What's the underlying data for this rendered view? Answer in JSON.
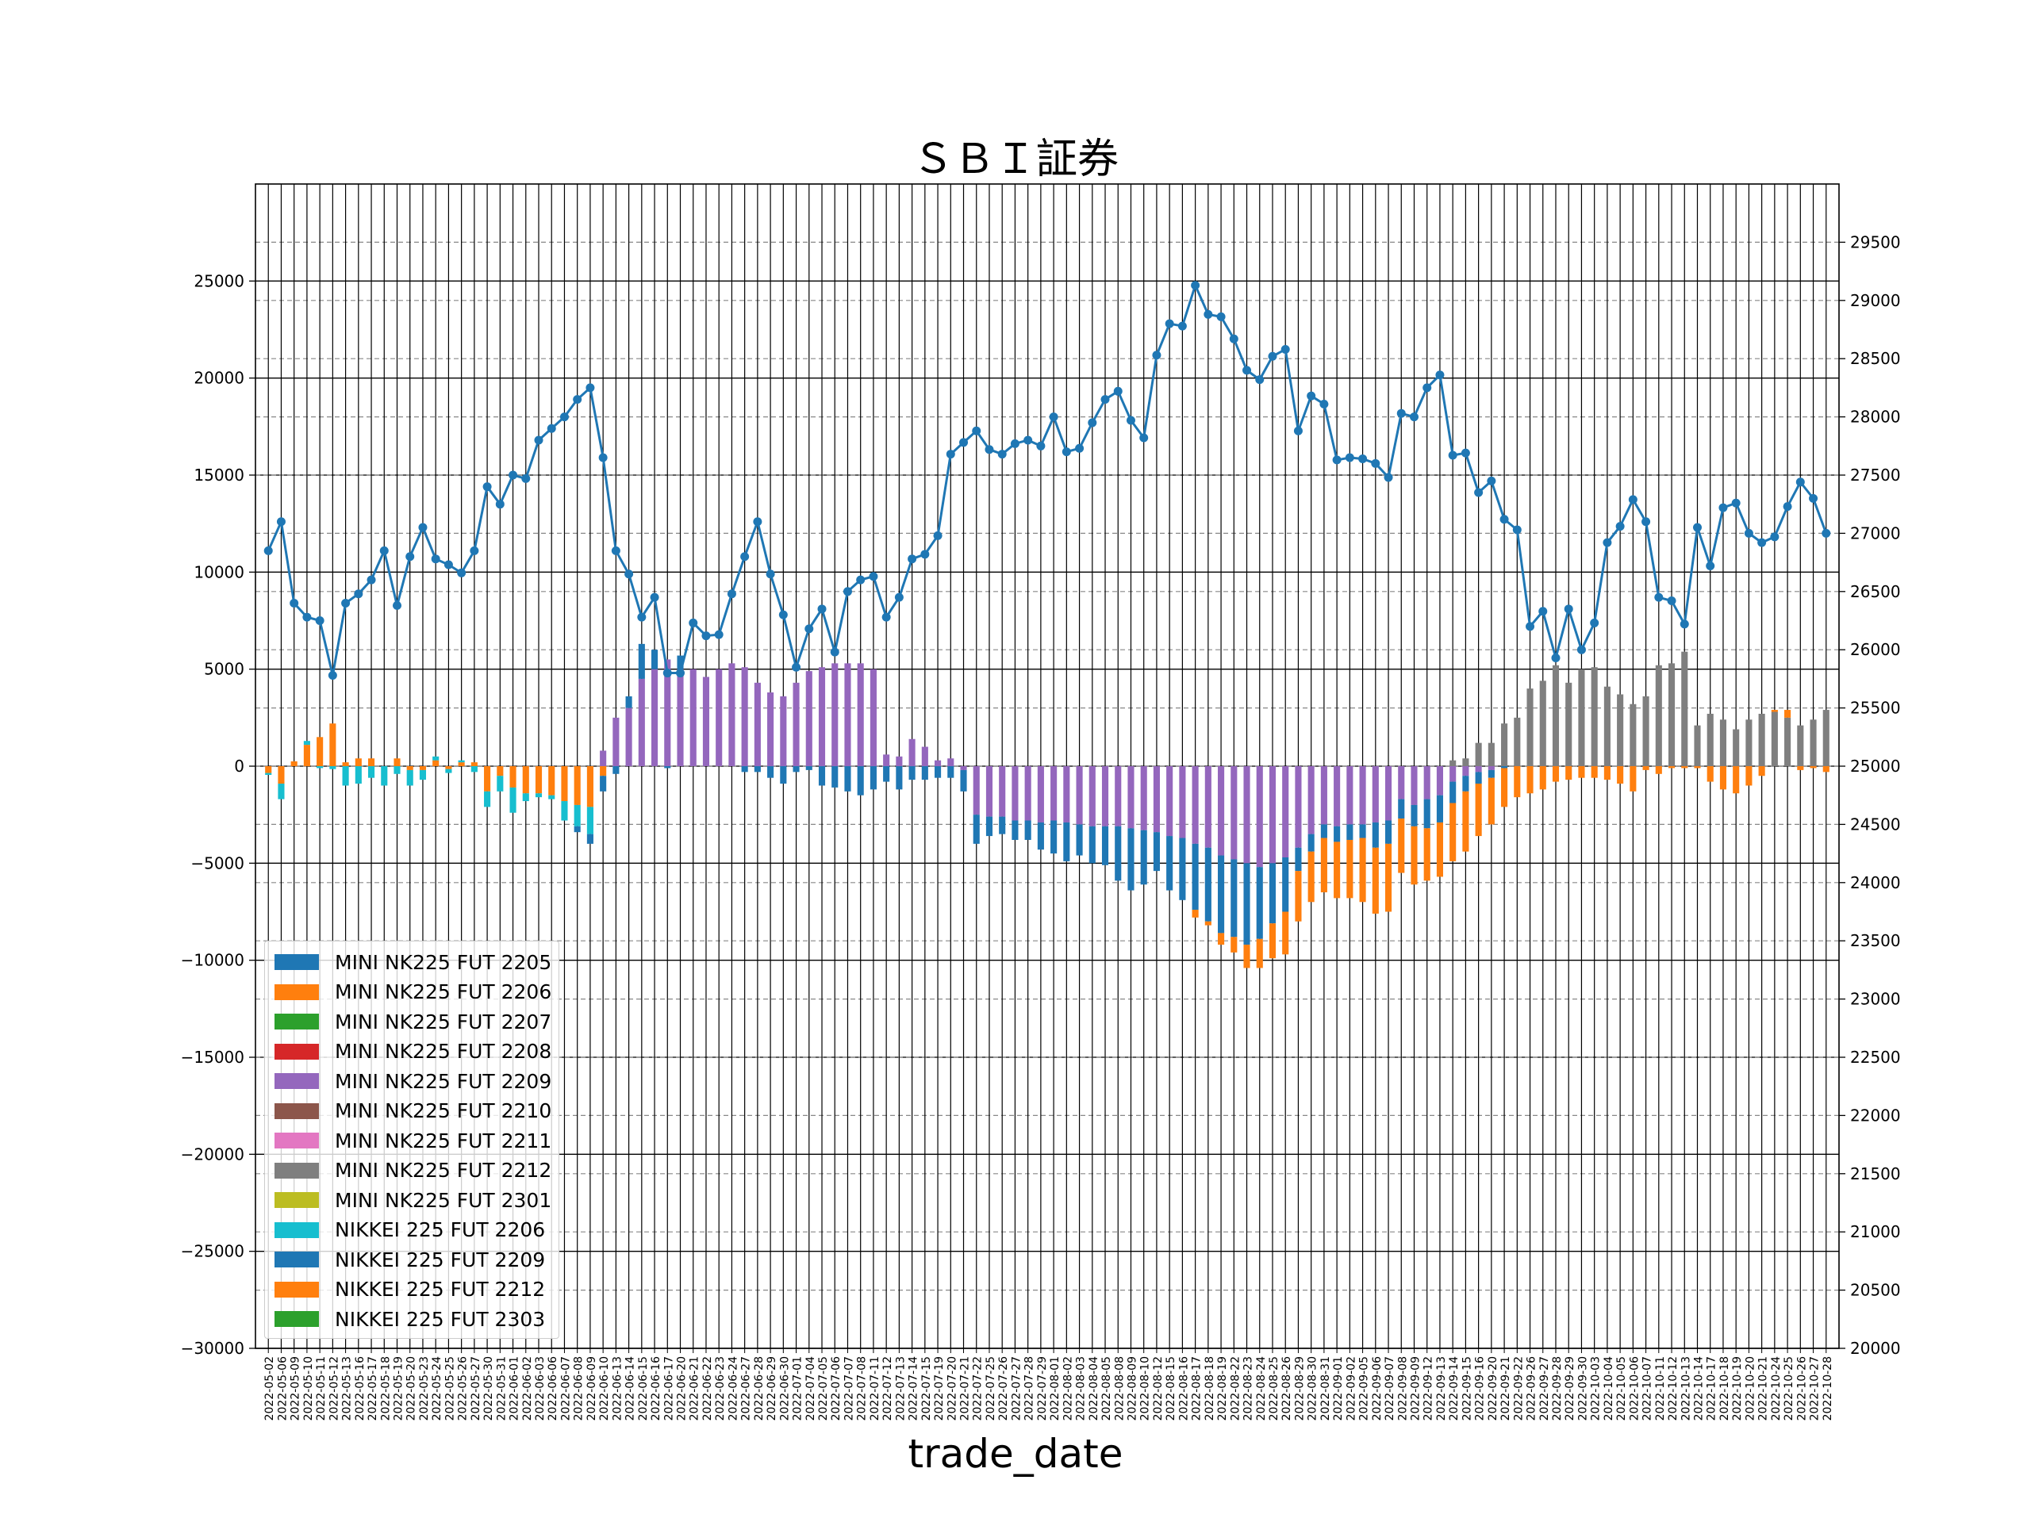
{
  "chart_data": {
    "type": "bar+line",
    "title": "ＳＢＩ証券",
    "xlabel": "trade_date",
    "ylabel": "",
    "ylim": [
      -30000,
      30000
    ],
    "y2lim": [
      20000,
      30000
    ],
    "yticks": [
      -30000,
      -25000,
      -20000,
      -15000,
      -10000,
      -5000,
      0,
      5000,
      10000,
      15000,
      20000,
      25000
    ],
    "y2ticks": [
      20000,
      20500,
      21000,
      21500,
      22000,
      22500,
      23000,
      23500,
      24000,
      24500,
      25000,
      25500,
      26000,
      26500,
      27000,
      27500,
      28000,
      28500,
      29000,
      29500
    ],
    "grid": true,
    "legend_position": "lower-left",
    "dates": [
      "2022-05-02",
      "2022-05-06",
      "2022-05-09",
      "2022-05-10",
      "2022-05-11",
      "2022-05-12",
      "2022-05-13",
      "2022-05-16",
      "2022-05-17",
      "2022-05-18",
      "2022-05-19",
      "2022-05-20",
      "2022-05-23",
      "2022-05-24",
      "2022-05-25",
      "2022-05-26",
      "2022-05-27",
      "2022-05-30",
      "2022-05-31",
      "2022-06-01",
      "2022-06-02",
      "2022-06-03",
      "2022-06-06",
      "2022-06-07",
      "2022-06-08",
      "2022-06-09",
      "2022-06-10",
      "2022-06-13",
      "2022-06-14",
      "2022-06-15",
      "2022-06-16",
      "2022-06-17",
      "2022-06-20",
      "2022-06-21",
      "2022-06-22",
      "2022-06-23",
      "2022-06-24",
      "2022-06-27",
      "2022-06-28",
      "2022-06-29",
      "2022-06-30",
      "2022-07-01",
      "2022-07-04",
      "2022-07-05",
      "2022-07-06",
      "2022-07-07",
      "2022-07-08",
      "2022-07-11",
      "2022-07-12",
      "2022-07-13",
      "2022-07-14",
      "2022-07-15",
      "2022-07-19",
      "2022-07-20",
      "2022-07-21",
      "2022-07-22",
      "2022-07-25",
      "2022-07-26",
      "2022-07-27",
      "2022-07-28",
      "2022-07-29",
      "2022-08-01",
      "2022-08-02",
      "2022-08-03",
      "2022-08-04",
      "2022-08-05",
      "2022-08-08",
      "2022-08-09",
      "2022-08-10",
      "2022-08-12",
      "2022-08-15",
      "2022-08-16",
      "2022-08-17",
      "2022-08-18",
      "2022-08-19",
      "2022-08-22",
      "2022-08-23",
      "2022-08-24",
      "2022-08-25",
      "2022-08-26",
      "2022-08-29",
      "2022-08-30",
      "2022-08-31",
      "2022-09-01",
      "2022-09-02",
      "2022-09-05",
      "2022-09-06",
      "2022-09-07",
      "2022-09-08",
      "2022-09-09",
      "2022-09-12",
      "2022-09-13",
      "2022-09-14",
      "2022-09-15",
      "2022-09-16",
      "2022-09-20",
      "2022-09-21",
      "2022-09-22",
      "2022-09-26",
      "2022-09-27",
      "2022-09-28",
      "2022-09-29",
      "2022-09-30",
      "2022-10-03",
      "2022-10-04",
      "2022-10-05",
      "2022-10-06",
      "2022-10-07",
      "2022-10-11",
      "2022-10-12",
      "2022-10-13",
      "2022-10-14",
      "2022-10-17",
      "2022-10-18",
      "2022-10-19",
      "2022-10-20",
      "2022-10-21",
      "2022-10-24",
      "2022-10-25",
      "2022-10-26",
      "2022-10-27",
      "2022-10-28"
    ],
    "line_series": {
      "name": "",
      "axis": "right",
      "color": "#1f77b4",
      "values": [
        26850,
        27100,
        26400,
        26280,
        26250,
        25780,
        26400,
        26480,
        26600,
        26850,
        26380,
        26800,
        27050,
        26780,
        26730,
        26660,
        26850,
        27400,
        27250,
        27500,
        27470,
        27800,
        27900,
        28000,
        28150,
        28250,
        27650,
        26850,
        26650,
        26280,
        26450,
        25800,
        25800,
        26230,
        26120,
        26130,
        26480,
        26800,
        27100,
        26650,
        26300,
        25850,
        26180,
        26350,
        25980,
        26500,
        26600,
        26630,
        26280,
        26450,
        26780,
        26820,
        26980,
        27680,
        27780,
        27880,
        27720,
        27680,
        27770,
        27800,
        27750,
        28000,
        27700,
        27730,
        27950,
        28150,
        28220,
        27970,
        27820,
        28530,
        28800,
        28780,
        29130,
        28880,
        28860,
        28670,
        28400,
        28320,
        28520,
        28580,
        27880,
        28180,
        28110,
        27630,
        27650,
        27640,
        27600,
        27480,
        28030,
        28000,
        28250,
        28360,
        27670,
        27690,
        27350,
        27450,
        27120,
        27030,
        26200,
        26330,
        25930,
        26350,
        26000,
        26230,
        26920,
        27060,
        27290,
        27100,
        26450,
        26420,
        26220,
        27050,
        26720,
        27220,
        27260,
        27000,
        26920,
        26970,
        27230,
        27440,
        27300,
        27000
      ]
    },
    "bar_series": [
      {
        "name": "MINI NK225 FUT 2205",
        "color": "#1f77b4",
        "ranges": []
      },
      {
        "name": "MINI NK225 FUT 2206",
        "color": "#ff7f0e",
        "ranges": [
          [
            0,
            4,
            -0.08
          ],
          [
            0,
            7,
            1.0
          ],
          [
            8,
            10,
            0.5
          ],
          [
            11,
            26,
            -0.05
          ]
        ],
        "values": [
          -350,
          -900,
          250,
          1100,
          1500,
          2200,
          200,
          400,
          400,
          0,
          400,
          -200,
          -200,
          300,
          -150,
          200,
          200,
          -1300,
          -500,
          -1100,
          -1400,
          -1400,
          -1500,
          -1800,
          -2000,
          -2100,
          -500
        ]
      },
      {
        "name": "MINI NK225 FUT 2207",
        "color": "#2ca02c",
        "values": []
      },
      {
        "name": "MINI NK225 FUT 2208",
        "color": "#d62728",
        "values": []
      },
      {
        "name": "MINI NK225 FUT 2209",
        "color": "#9467bd",
        "start": 26,
        "values": [
          800,
          2500,
          3000,
          4500,
          5000,
          5500,
          5000,
          5000,
          4600,
          5000,
          5300,
          5100,
          4300,
          3800,
          3600,
          4300,
          4900,
          5100,
          5300,
          5300,
          5300,
          5000,
          600,
          500,
          1400,
          1000,
          300,
          400,
          -200,
          -2500,
          -2600,
          -2600,
          -2800,
          -2800,
          -2900,
          -2800,
          -2900,
          -3000,
          -3100,
          -3100,
          -3100,
          -3200,
          -3300,
          -3400,
          -3600,
          -3700,
          -4000,
          -4200,
          -4600,
          -4800,
          -5000,
          -5200,
          -5000,
          -4700,
          -4200,
          -3500,
          -3000,
          -3100,
          -3000,
          -3000,
          -2900,
          -2800,
          -1700,
          -2000,
          -1700,
          -1500,
          -800,
          -500,
          -300,
          -200
        ]
      },
      {
        "name": "MINI NK225 FUT 2210",
        "color": "#8c564b",
        "values": []
      },
      {
        "name": "MINI NK225 FUT 2211",
        "color": "#e377c2",
        "values": []
      },
      {
        "name": "MINI NK225 FUT 2212",
        "color": "#7f7f7f",
        "start": 92,
        "values": [
          300,
          400,
          1200,
          1200,
          2200,
          2500,
          4000,
          4400,
          5200,
          4300,
          5000,
          5100,
          4100,
          3700,
          3200,
          3600,
          5200,
          5300,
          5900,
          2100,
          2700,
          2400,
          1900,
          2400,
          2700,
          2800,
          2500,
          2100,
          2400,
          2900
        ]
      },
      {
        "name": "MINI NK225 FUT 2301",
        "color": "#bcbd22",
        "values": []
      },
      {
        "name": "NIKKEI 225 FUT 2206",
        "color": "#17becf",
        "start": 0,
        "values": [
          -100,
          -800,
          0,
          200,
          -100,
          -150,
          -1000,
          -900,
          -600,
          -1000,
          -400,
          -800,
          -500,
          200,
          -200,
          100,
          -300,
          -800,
          -800,
          -1300,
          -400,
          -200,
          -200,
          -1000,
          -1100,
          -1400
        ]
      },
      {
        "name": "NIKKEI 225 FUT 2209",
        "color": "#1f77b4",
        "start": 24,
        "values": [
          -300,
          -500,
          -800,
          -400,
          600,
          1800,
          1000,
          -100,
          700,
          0,
          0,
          0,
          0,
          -300,
          -300,
          -600,
          -900,
          -300,
          -200,
          -1000,
          -1100,
          -1300,
          -1500,
          -1200,
          -800,
          -1200,
          -700,
          -700,
          -600,
          -600,
          -1100,
          -1500,
          -1000,
          -900,
          -1000,
          -1000,
          -1400,
          -1700,
          -2000,
          -1600,
          -1900,
          -2000,
          -2800,
          -3200,
          -2800,
          -2000,
          -2800,
          -3200,
          -3400,
          -3800,
          -4000,
          -4000,
          -4200,
          -3700,
          -3100,
          -2800,
          -1200,
          -900,
          -700,
          -800,
          -800,
          -700,
          -1300,
          -1200,
          -1000,
          -1100,
          -1500,
          -1400,
          -1100,
          -800,
          -600,
          -400,
          -100,
          0
        ]
      },
      {
        "name": "NIKKEI 225 FUT 2212",
        "color": "#ff7f0e",
        "start": 72,
        "values": [
          -400,
          -200,
          -600,
          -800,
          -1200,
          -1500,
          -1800,
          -2200,
          -2600,
          -2600,
          -2800,
          -2900,
          -3000,
          -3300,
          -3400,
          -3500,
          -2800,
          -3000,
          -2700,
          -2800,
          -3000,
          -3100,
          -2700,
          -2400,
          -2000,
          -1600,
          -1400,
          -1200,
          -800,
          -700,
          -600,
          -600,
          -700,
          -900,
          -1300,
          -200,
          -400,
          -100,
          -100,
          -100,
          -800,
          -1200,
          -1400,
          -1000,
          -500,
          100,
          400,
          -200,
          -100,
          -300,
          -200,
          -100,
          200,
          100,
          200,
          -800,
          -800
        ]
      },
      {
        "name": "NIKKEI 225 FUT 2303",
        "color": "#2ca02c",
        "values": []
      }
    ],
    "legend": [
      "MINI NK225 FUT 2205",
      "MINI NK225 FUT 2206",
      "MINI NK225 FUT 2207",
      "MINI NK225 FUT 2208",
      "MINI NK225 FUT 2209",
      "MINI NK225 FUT 2210",
      "MINI NK225 FUT 2211",
      "MINI NK225 FUT 2212",
      "MINI NK225 FUT 2301",
      "NIKKEI 225 FUT 2206",
      "NIKKEI 225 FUT 2209",
      "NIKKEI 225 FUT 2212",
      "NIKKEI 225 FUT 2303"
    ],
    "legend_colors": [
      "#1f77b4",
      "#ff7f0e",
      "#2ca02c",
      "#d62728",
      "#9467bd",
      "#8c564b",
      "#e377c2",
      "#7f7f7f",
      "#bcbd22",
      "#17becf",
      "#1f77b4",
      "#ff7f0e",
      "#2ca02c"
    ]
  }
}
